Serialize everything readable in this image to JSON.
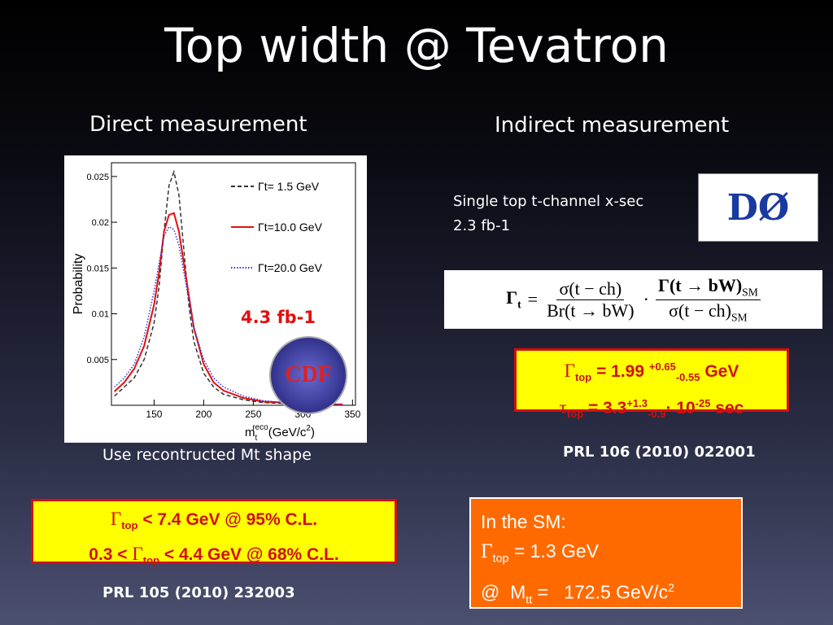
{
  "title": "Top width @ Tevatron",
  "direct": {
    "heading": "Direct measurement",
    "caption": "Use recontructed Mt shape",
    "lumi": "4.3 fb-1",
    "logo": "CDF",
    "plot": {
      "type": "line",
      "y_label": "Probability",
      "x_label": {
        "base": "m",
        "sub": "t",
        "sup": "reco",
        "unit": "(GeV/c",
        "unit_sup": "2",
        "close": ")"
      },
      "x": [
        110,
        120,
        130,
        140,
        150,
        155,
        160,
        165,
        170,
        175,
        180,
        185,
        190,
        200,
        210,
        220,
        240,
        260,
        280,
        300,
        320,
        340
      ],
      "series": [
        {
          "name": "Γt= 1.5 GeV",
          "color": "#333333",
          "dash": "5,3",
          "values": [
            0.001,
            0.002,
            0.003,
            0.005,
            0.009,
            0.013,
            0.019,
            0.024,
            0.0255,
            0.023,
            0.017,
            0.011,
            0.007,
            0.0035,
            0.002,
            0.0012,
            0.0006,
            0.0003,
            0.0002,
            0.0001,
            0.0001,
            0.0001
          ]
        },
        {
          "name": "Γt=10.0 GeV",
          "color": "#e01010",
          "dash": "none",
          "values": [
            0.0015,
            0.0025,
            0.004,
            0.0065,
            0.011,
            0.0145,
            0.019,
            0.0208,
            0.021,
            0.019,
            0.0155,
            0.012,
            0.0085,
            0.0045,
            0.0025,
            0.0016,
            0.0008,
            0.0004,
            0.0003,
            0.0002,
            0.0001,
            0.0001
          ]
        },
        {
          "name": "Γt=20.0 GeV",
          "color": "#3333dd",
          "dash": "1.5,2",
          "values": [
            0.002,
            0.003,
            0.0045,
            0.0075,
            0.0125,
            0.0155,
            0.0185,
            0.0195,
            0.0192,
            0.0175,
            0.0145,
            0.0115,
            0.0085,
            0.005,
            0.003,
            0.002,
            0.001,
            0.0005,
            0.0003,
            0.0002,
            0.0001,
            0.0001
          ]
        }
      ],
      "xlim": [
        107,
        353
      ],
      "ylim": [
        0,
        0.0265
      ],
      "xticks": [
        150,
        200,
        250,
        300,
        350
      ],
      "yticks": [
        0.005,
        0.01,
        0.015,
        0.02,
        0.025
      ]
    },
    "result": {
      "line1": {
        "symbol": "Γ",
        "sub": "top",
        "text": "< 7.4 GeV @ 95% C.L."
      },
      "line2": {
        "pre": "0.3 <",
        "symbol": "Γ",
        "sub": "top",
        "text": "< 4.4 GeV @ 68% C.L."
      }
    },
    "reference": "PRL 105 (2010) 232003"
  },
  "indirect": {
    "heading": "Indirect measurement",
    "desc": [
      "Single top t-channel x-sec",
      "2.3 fb-1"
    ],
    "logo": "DØ",
    "formula": {
      "lhs": "Γ",
      "lhs_sub": "t",
      "eq": "=",
      "num1": "σ(t − ch)",
      "den1": "Br(t → bW)",
      "dot": "·",
      "num2": "Γ(t → bW)",
      "num2_sub": "SM",
      "den2": "σ(t − ch)",
      "den2_sub": "SM"
    },
    "result": {
      "line1": {
        "symbol": "Γ",
        "sub": "top",
        "text": "= 1.99",
        "sup": "+0.65",
        "sub2": "-0.55",
        "unit": "GeV"
      },
      "line2": {
        "symbol": "τ",
        "sub": "top",
        "text": "= 3.3",
        "sup": "+1.3",
        "sub2": "-0.9",
        "mid": "· 10",
        "exp": "-25",
        "unit": "sec"
      }
    },
    "reference": "PRL 106 (2010) 022001",
    "sm": {
      "heading": "In the SM:",
      "line1": {
        "symbol": "Γ",
        "sub": "top",
        "text": "= 1.3 GeV"
      },
      "line2": {
        "pre": "@  M",
        "sub": "tt",
        "text": "=   172.5 GeV/c",
        "sup": "2"
      }
    }
  }
}
